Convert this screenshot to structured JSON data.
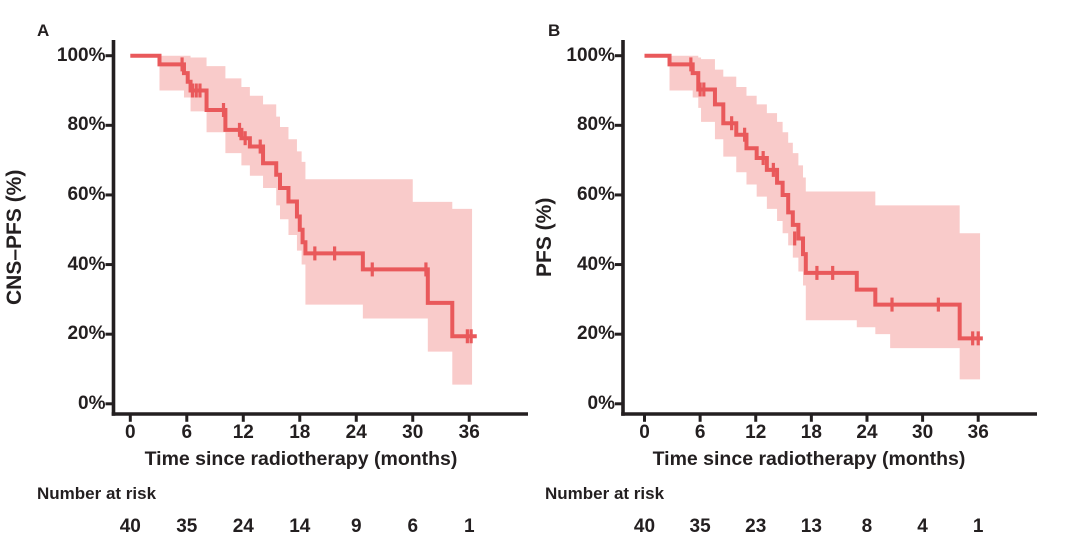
{
  "figure": {
    "background": "#ffffff",
    "colors": {
      "curve": "#e9595b",
      "band": "#f9cbca",
      "axis": "#231f20",
      "text": "#231f20"
    }
  },
  "chart_data": [
    {
      "type": "line",
      "subtype": "kaplan-meier-step",
      "title": "A",
      "ylabel": "CNS–PFS (%)",
      "xlabel": "Time since radiotherapy (months)",
      "xlim": [
        0,
        42
      ],
      "ylim": [
        0,
        100
      ],
      "x_ticks": [
        0,
        6,
        12,
        18,
        24,
        30,
        36
      ],
      "y_tick_values": [
        0,
        20,
        40,
        60,
        80,
        100
      ],
      "y_tick_labels": [
        "0%",
        "20%",
        "40%",
        "60%",
        "80%",
        "100%"
      ],
      "grid": false,
      "legend_position": "none",
      "steps_time_survival_pct": [
        [
          0,
          100
        ],
        [
          3.1,
          97.5
        ],
        [
          5.7,
          95
        ],
        [
          6.1,
          92.5
        ],
        [
          6.4,
          90
        ],
        [
          8.1,
          84.4
        ],
        [
          10.1,
          78.7
        ],
        [
          11.8,
          76.3
        ],
        [
          12.7,
          73.9
        ],
        [
          14.1,
          69.1
        ],
        [
          15.5,
          65.8
        ],
        [
          15.9,
          62
        ],
        [
          16.8,
          58.1
        ],
        [
          17.7,
          53.8
        ],
        [
          18,
          50
        ],
        [
          18.3,
          46.4
        ],
        [
          18.6,
          43.2
        ],
        [
          24.7,
          38.6
        ],
        [
          31.6,
          29
        ],
        [
          34.2,
          19.4
        ],
        [
          36.8,
          19.4
        ]
      ],
      "censor_marks_time_survival_pct": [
        [
          5.5,
          97.5
        ],
        [
          6.6,
          90
        ],
        [
          7,
          90
        ],
        [
          7.4,
          90
        ],
        [
          9.9,
          84.4
        ],
        [
          11.6,
          78.7
        ],
        [
          12.2,
          76.3
        ],
        [
          13.8,
          73.9
        ],
        [
          19.6,
          43.2
        ],
        [
          21.7,
          43.2
        ],
        [
          25.7,
          38.6
        ],
        [
          31.4,
          38.6
        ],
        [
          35.8,
          19.4
        ],
        [
          36.2,
          19.4
        ]
      ],
      "confidence_band_time_upper_lower_pct": [
        [
          3.1,
          100,
          90
        ],
        [
          5.7,
          100,
          88
        ],
        [
          6.4,
          99.5,
          84
        ],
        [
          8.1,
          97,
          78
        ],
        [
          10.1,
          93.5,
          72
        ],
        [
          11.8,
          91,
          68.5
        ],
        [
          12.7,
          88.5,
          65.5
        ],
        [
          14.1,
          86,
          62
        ],
        [
          15.5,
          82.5,
          57
        ],
        [
          15.9,
          79.5,
          53
        ],
        [
          16.8,
          76,
          48.5
        ],
        [
          17.7,
          72.5,
          44
        ],
        [
          18.2,
          69.5,
          40
        ],
        [
          18.6,
          64.5,
          28.5
        ],
        [
          24.7,
          64.5,
          24.5
        ],
        [
          30,
          58,
          24.5
        ],
        [
          31.6,
          58,
          15
        ],
        [
          34.2,
          56,
          5.5
        ],
        [
          36.3,
          56,
          5.5
        ]
      ],
      "number_at_risk": {
        "label": "Number at risk",
        "times": [
          0,
          6,
          12,
          18,
          24,
          30,
          36
        ],
        "values": [
          40,
          35,
          24,
          14,
          9,
          6,
          1
        ]
      }
    },
    {
      "type": "line",
      "subtype": "kaplan-meier-step",
      "title": "B",
      "ylabel": "PFS (%)",
      "xlabel": "Time since radiotherapy (months)",
      "xlim": [
        0,
        42
      ],
      "ylim": [
        0,
        100
      ],
      "x_ticks": [
        0,
        6,
        12,
        18,
        24,
        30,
        36
      ],
      "y_tick_values": [
        0,
        20,
        40,
        60,
        80,
        100
      ],
      "y_tick_labels": [
        "0%",
        "20%",
        "40%",
        "60%",
        "80%",
        "100%"
      ],
      "grid": false,
      "legend_position": "none",
      "steps_time_survival_pct": [
        [
          0,
          100
        ],
        [
          2.7,
          97.5
        ],
        [
          5.2,
          95
        ],
        [
          5.8,
          90.3
        ],
        [
          7.6,
          86
        ],
        [
          8.5,
          80.6
        ],
        [
          9.9,
          77.3
        ],
        [
          11,
          73.4
        ],
        [
          12.1,
          70.6
        ],
        [
          13.2,
          67.2
        ],
        [
          14.3,
          63.5
        ],
        [
          14.9,
          60
        ],
        [
          15.5,
          55
        ],
        [
          16,
          51.4
        ],
        [
          16.6,
          47.5
        ],
        [
          17.1,
          43
        ],
        [
          17.4,
          37.6
        ],
        [
          22.9,
          32.8
        ],
        [
          24.9,
          28.5
        ],
        [
          34,
          18.8
        ],
        [
          36.5,
          18.8
        ]
      ],
      "censor_marks_time_survival_pct": [
        [
          5,
          97.5
        ],
        [
          6,
          90.3
        ],
        [
          6.4,
          90.3
        ],
        [
          9.4,
          80.6
        ],
        [
          10.8,
          77.3
        ],
        [
          12.8,
          70.6
        ],
        [
          13.9,
          67.2
        ],
        [
          16.2,
          47.5
        ],
        [
          18.6,
          37.6
        ],
        [
          20.3,
          37.6
        ],
        [
          26.7,
          28.5
        ],
        [
          31.7,
          28.5
        ],
        [
          35.4,
          18.8
        ],
        [
          36,
          18.8
        ]
      ],
      "confidence_band_time_upper_lower_pct": [
        [
          2.7,
          100,
          90
        ],
        [
          5.2,
          100,
          88
        ],
        [
          5.8,
          99.5,
          85
        ],
        [
          6.1,
          99,
          81
        ],
        [
          7.6,
          96,
          76
        ],
        [
          8.5,
          94,
          71
        ],
        [
          9.9,
          91,
          66.5
        ],
        [
          11,
          88.5,
          63
        ],
        [
          12.1,
          86,
          59.5
        ],
        [
          13.2,
          83.5,
          56
        ],
        [
          14.3,
          81,
          52.5
        ],
        [
          14.9,
          78,
          49
        ],
        [
          15.5,
          75,
          45.5
        ],
        [
          16,
          72,
          42
        ],
        [
          16.6,
          68.5,
          38
        ],
        [
          17.1,
          65,
          34
        ],
        [
          17.4,
          61,
          24
        ],
        [
          22.9,
          61,
          22
        ],
        [
          24.9,
          57,
          20
        ],
        [
          26.5,
          57,
          16
        ],
        [
          34,
          49,
          7
        ],
        [
          36.2,
          49,
          7
        ]
      ],
      "number_at_risk": {
        "label": "Number at risk",
        "times": [
          0,
          6,
          12,
          18,
          24,
          30,
          36
        ],
        "values": [
          40,
          35,
          23,
          13,
          8,
          4,
          1
        ]
      }
    }
  ]
}
